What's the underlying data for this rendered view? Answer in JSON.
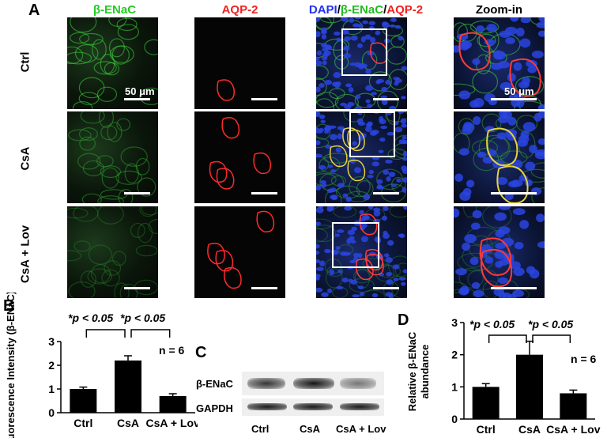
{
  "panel_letters": {
    "a": "A",
    "b": "B",
    "c": "C",
    "d": "D"
  },
  "image_grid": {
    "columns": [
      {
        "label": "β-ENaC",
        "color": "#22cc22"
      },
      {
        "label": "AQP-2",
        "color": "#ee2222"
      },
      {
        "label_parts": [
          {
            "text": "DAPI",
            "color": "#2233ee"
          },
          {
            "text": "/",
            "color": "#000000"
          },
          {
            "text": "β-ENaC",
            "color": "#22bb22"
          },
          {
            "text": "/",
            "color": "#000000"
          },
          {
            "text": "AQP-2",
            "color": "#ee2222"
          }
        ]
      },
      {
        "label": "Zoom-in",
        "color": "#000000"
      }
    ],
    "rows": [
      "Ctrl",
      "CsA",
      "CsA + Lov"
    ],
    "scale_label": "50 μm"
  },
  "chart_data": [
    {
      "panel": "B",
      "type": "bar",
      "categories": [
        "Ctrl",
        "CsA",
        "CsA + Lov"
      ],
      "values": [
        1.0,
        2.2,
        0.7
      ],
      "errors": [
        0.08,
        0.2,
        0.1
      ],
      "ylabel": "Fluorescence Intensity (β-ENaC)",
      "ylim": [
        0,
        3
      ],
      "yticks": [
        "0",
        "1",
        "2",
        "3"
      ],
      "annotations": {
        "sig1": "*p < 0.05",
        "sig2": "*p < 0.05",
        "n": "n = 6"
      },
      "bar_color": "#000000",
      "grid": false
    },
    {
      "panel": "D",
      "type": "bar",
      "categories": [
        "Ctrl",
        "CsA",
        "CsA + Lov"
      ],
      "values": [
        1.0,
        2.0,
        0.8
      ],
      "errors": [
        0.1,
        0.42,
        0.1
      ],
      "ylabel": "Relative β-ENaC abundance",
      "ylim": [
        0,
        3
      ],
      "yticks": [
        "0",
        "1",
        "2",
        "3"
      ],
      "annotations": {
        "sig1": "*p < 0.05",
        "sig2": "*p < 0.05",
        "n": "n = 6"
      },
      "bar_color": "#000000",
      "grid": false
    }
  ],
  "blot": {
    "bands": [
      "β-ENaC",
      "GAPDH"
    ],
    "lanes": [
      "Ctrl",
      "CsA",
      "CsA + Lov"
    ]
  }
}
